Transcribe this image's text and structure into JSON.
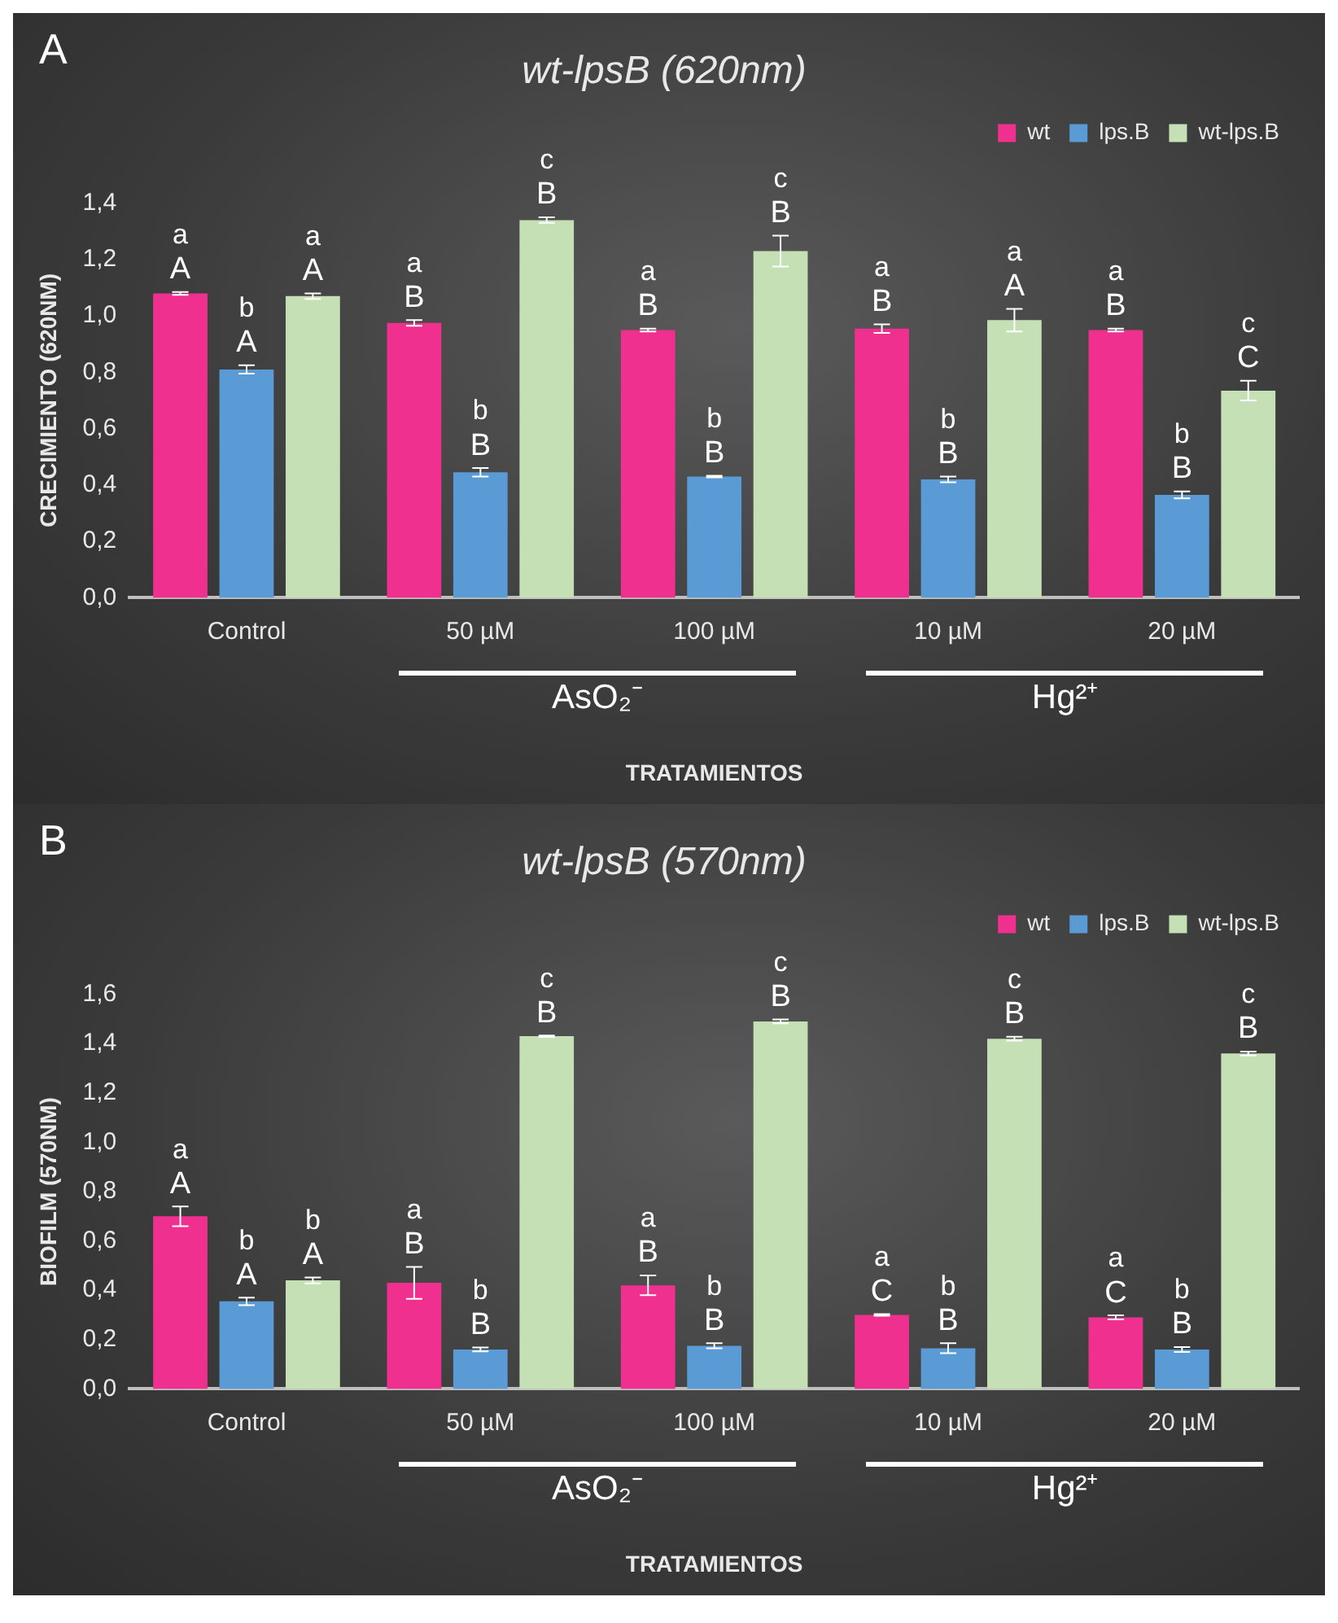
{
  "chart_data": [
    {
      "type": "bar",
      "title": "wt-lpsB (620nm)",
      "xlabel": "TRATAMIENTOS",
      "ylabel": "CRECIMIENTO (620NM)",
      "categories": [
        "Control",
        "50 µM",
        "100 µM",
        "10 µM",
        "20 µM"
      ],
      "series": [
        {
          "name": "wt",
          "color": "#f0308f",
          "values": [
            1.08,
            0.975,
            0.95,
            0.955,
            0.95
          ],
          "errors": [
            0.005,
            0.01,
            0.005,
            0.015,
            0.005
          ],
          "value_labels": [
            "a\nA",
            "a\nB",
            "a\nB",
            "a\nB",
            "a\nB"
          ]
        },
        {
          "name": "lps.B",
          "color": "#5b9bd5",
          "values": [
            0.81,
            0.445,
            0.43,
            0.42,
            0.365
          ],
          "errors": [
            0.015,
            0.015,
            0.003,
            0.01,
            0.012
          ],
          "value_labels": [
            "b\nA",
            "b\nB",
            "b\nB",
            "b\nB",
            "b\nB"
          ]
        },
        {
          "name": "wt-lps.B",
          "color": "#c5e0b4",
          "values": [
            1.07,
            1.34,
            1.23,
            0.985,
            0.735
          ],
          "errors": [
            0.01,
            0.01,
            0.055,
            0.04,
            0.035
          ],
          "value_labels": [
            "a\nA",
            "c\nB",
            "c\nB",
            "a\nA",
            "c\nC"
          ]
        }
      ],
      "ylim": [
        0,
        1.4
      ],
      "yticks": [
        {
          "value": 0,
          "label": "0,0"
        },
        {
          "value": 0.2,
          "label": "0,2"
        },
        {
          "value": 0.4,
          "label": "0,4"
        },
        {
          "value": 0.6,
          "label": "0,6"
        },
        {
          "value": 0.8,
          "label": "0,8"
        },
        {
          "value": 1.0,
          "label": "1,0"
        },
        {
          "value": 1.2,
          "label": "1,2"
        },
        {
          "value": 1.4,
          "label": "1,4"
        }
      ],
      "grid": false,
      "legend": "top right",
      "annotations": [
        "A",
        "AsO₂⁻",
        "Hg²⁺"
      ]
    },
    {
      "type": "bar",
      "title": "wt-lpsB (570nm)",
      "xlabel": "TRATAMIENTOS",
      "ylabel": "BIOFILM (570NM)",
      "categories": [
        "Control",
        "50 µM",
        "100 µM",
        "10 µM",
        "20 µM"
      ],
      "series": [
        {
          "name": "wt",
          "color": "#f0308f",
          "values": [
            0.7,
            0.43,
            0.42,
            0.3,
            0.29
          ],
          "errors": [
            0.04,
            0.065,
            0.04,
            0.003,
            0.008
          ],
          "value_labels": [
            "a\nA",
            "a\nB",
            "a\nB",
            "a\nC",
            "a\nC"
          ]
        },
        {
          "name": "lps.B",
          "color": "#5b9bd5",
          "values": [
            0.355,
            0.16,
            0.175,
            0.165,
            0.16
          ],
          "errors": [
            0.015,
            0.008,
            0.01,
            0.02,
            0.01
          ],
          "value_labels": [
            "b\nA",
            "b\nB",
            "b\nB",
            "b\nB",
            "b\nB"
          ]
        },
        {
          "name": "wt-lps.B",
          "color": "#c5e0b4",
          "values": [
            0.44,
            1.43,
            1.49,
            1.42,
            1.36
          ],
          "errors": [
            0.012,
            0.003,
            0.008,
            0.008,
            0.008
          ],
          "value_labels": [
            "b\nA",
            "c\nB",
            "c\nB",
            "c\nB",
            "c\nB"
          ]
        }
      ],
      "ylim": [
        0,
        1.6
      ],
      "yticks": [
        {
          "value": 0,
          "label": "0,0"
        },
        {
          "value": 0.2,
          "label": "0,2"
        },
        {
          "value": 0.4,
          "label": "0,4"
        },
        {
          "value": 0.6,
          "label": "0,6"
        },
        {
          "value": 0.8,
          "label": "0,8"
        },
        {
          "value": 1.0,
          "label": "1,0"
        },
        {
          "value": 1.2,
          "label": "1,2"
        },
        {
          "value": 1.4,
          "label": "1,4"
        },
        {
          "value": 1.6,
          "label": "1,6"
        }
      ],
      "grid": false,
      "legend": "top right",
      "annotations": [
        "B",
        "AsO₂⁻",
        "Hg²⁺"
      ]
    }
  ]
}
